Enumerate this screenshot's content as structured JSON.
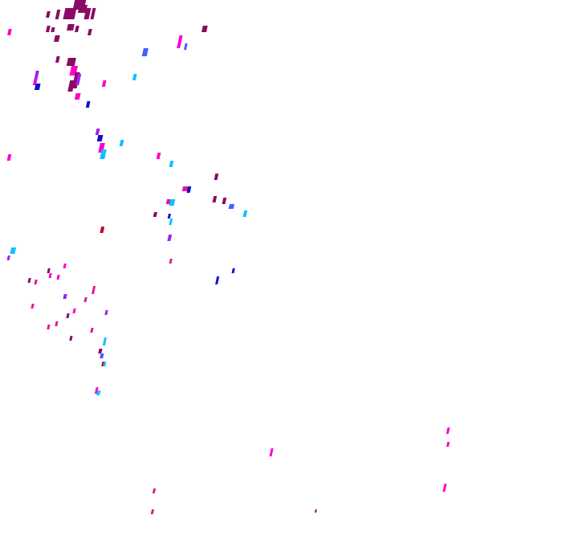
{
  "map": {
    "background": "#ffffff",
    "palette": {
      "dark_magenta": "#8b0a66",
      "magenta": "#ff00cc",
      "pink": "#e0189a",
      "violet": "#a020f0",
      "blue": "#1010d0",
      "royal_blue": "#4060ff",
      "cyan": "#10c0ff",
      "red": "#c00020"
    }
  }
}
